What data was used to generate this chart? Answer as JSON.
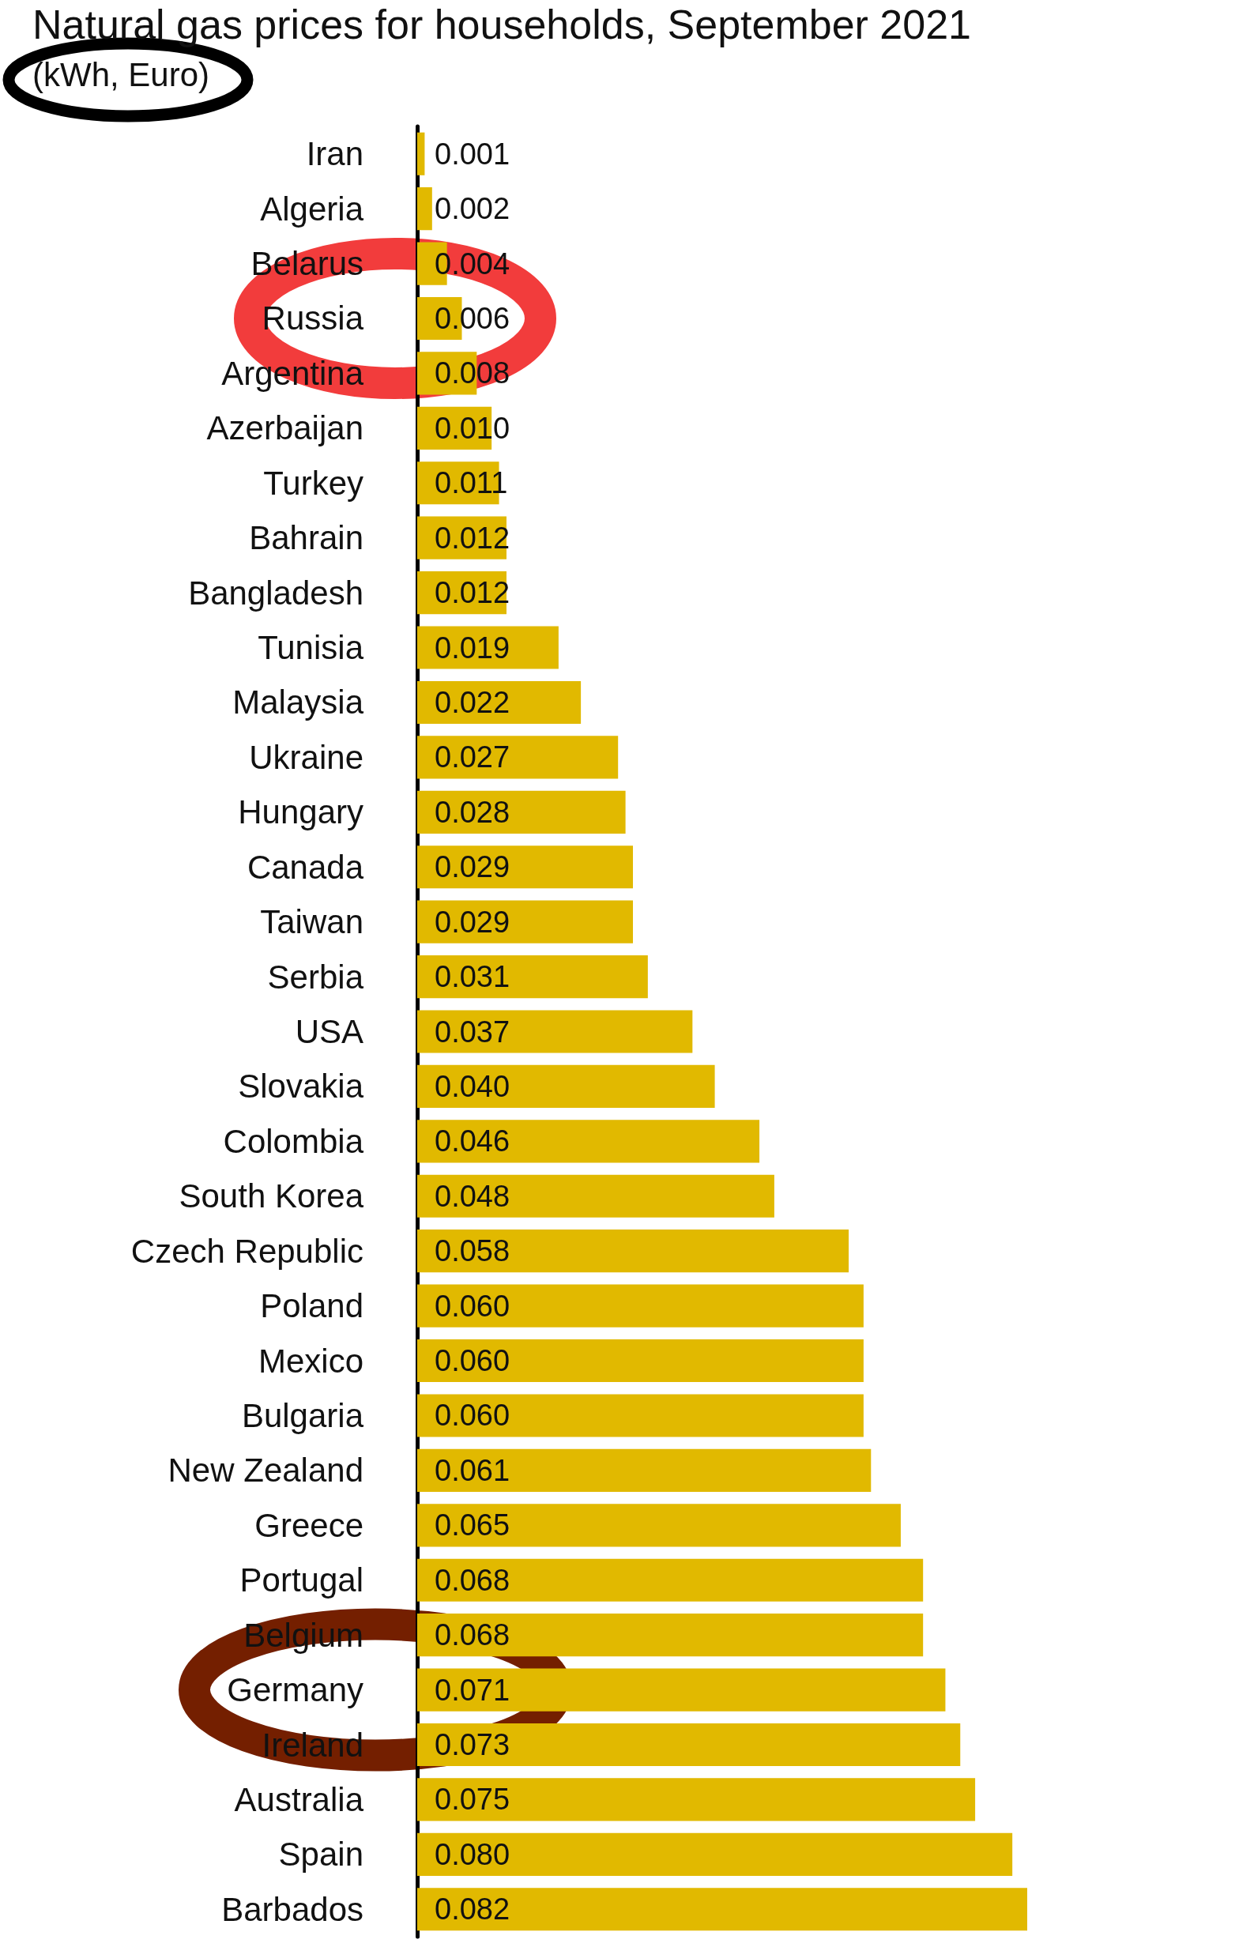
{
  "chart_data": {
    "type": "bar",
    "orientation": "horizontal",
    "title": "Natural gas prices for households, September 2021",
    "subtitle": "(kWh, Euro)",
    "categories": [
      "Iran",
      "Algeria",
      "Belarus",
      "Russia",
      "Argentina",
      "Azerbaijan",
      "Turkey",
      "Bahrain",
      "Bangladesh",
      "Tunisia",
      "Malaysia",
      "Ukraine",
      "Hungary",
      "Canada",
      "Taiwan",
      "Serbia",
      "USA",
      "Slovakia",
      "Colombia",
      "South Korea",
      "Czech Republic",
      "Poland",
      "Mexico",
      "Bulgaria",
      "New Zealand",
      "Greece",
      "Portugal",
      "Belgium",
      "Germany",
      "Ireland",
      "Australia",
      "Spain",
      "Barbados"
    ],
    "values": [
      0.001,
      0.002,
      0.004,
      0.006,
      0.008,
      0.01,
      0.011,
      0.012,
      0.012,
      0.019,
      0.022,
      0.027,
      0.028,
      0.029,
      0.029,
      0.031,
      0.037,
      0.04,
      0.046,
      0.048,
      0.058,
      0.06,
      0.06,
      0.06,
      0.061,
      0.065,
      0.068,
      0.068,
      0.071,
      0.073,
      0.075,
      0.08,
      0.082
    ],
    "value_labels": [
      "0.001",
      "0.002",
      "0.004",
      "0.006",
      "0.008",
      "0.010",
      "0.011",
      "0.012",
      "0.012",
      "0.019",
      "0.022",
      "0.027",
      "0.028",
      "0.029",
      "0.029",
      "0.031",
      "0.037",
      "0.040",
      "0.046",
      "0.048",
      "0.058",
      "0.060",
      "0.060",
      "0.060",
      "0.061",
      "0.065",
      "0.068",
      "0.068",
      "0.071",
      "0.073",
      "0.075",
      "0.080",
      "0.082"
    ],
    "color": "#e1b900",
    "tick_labels": "y"
  }
}
